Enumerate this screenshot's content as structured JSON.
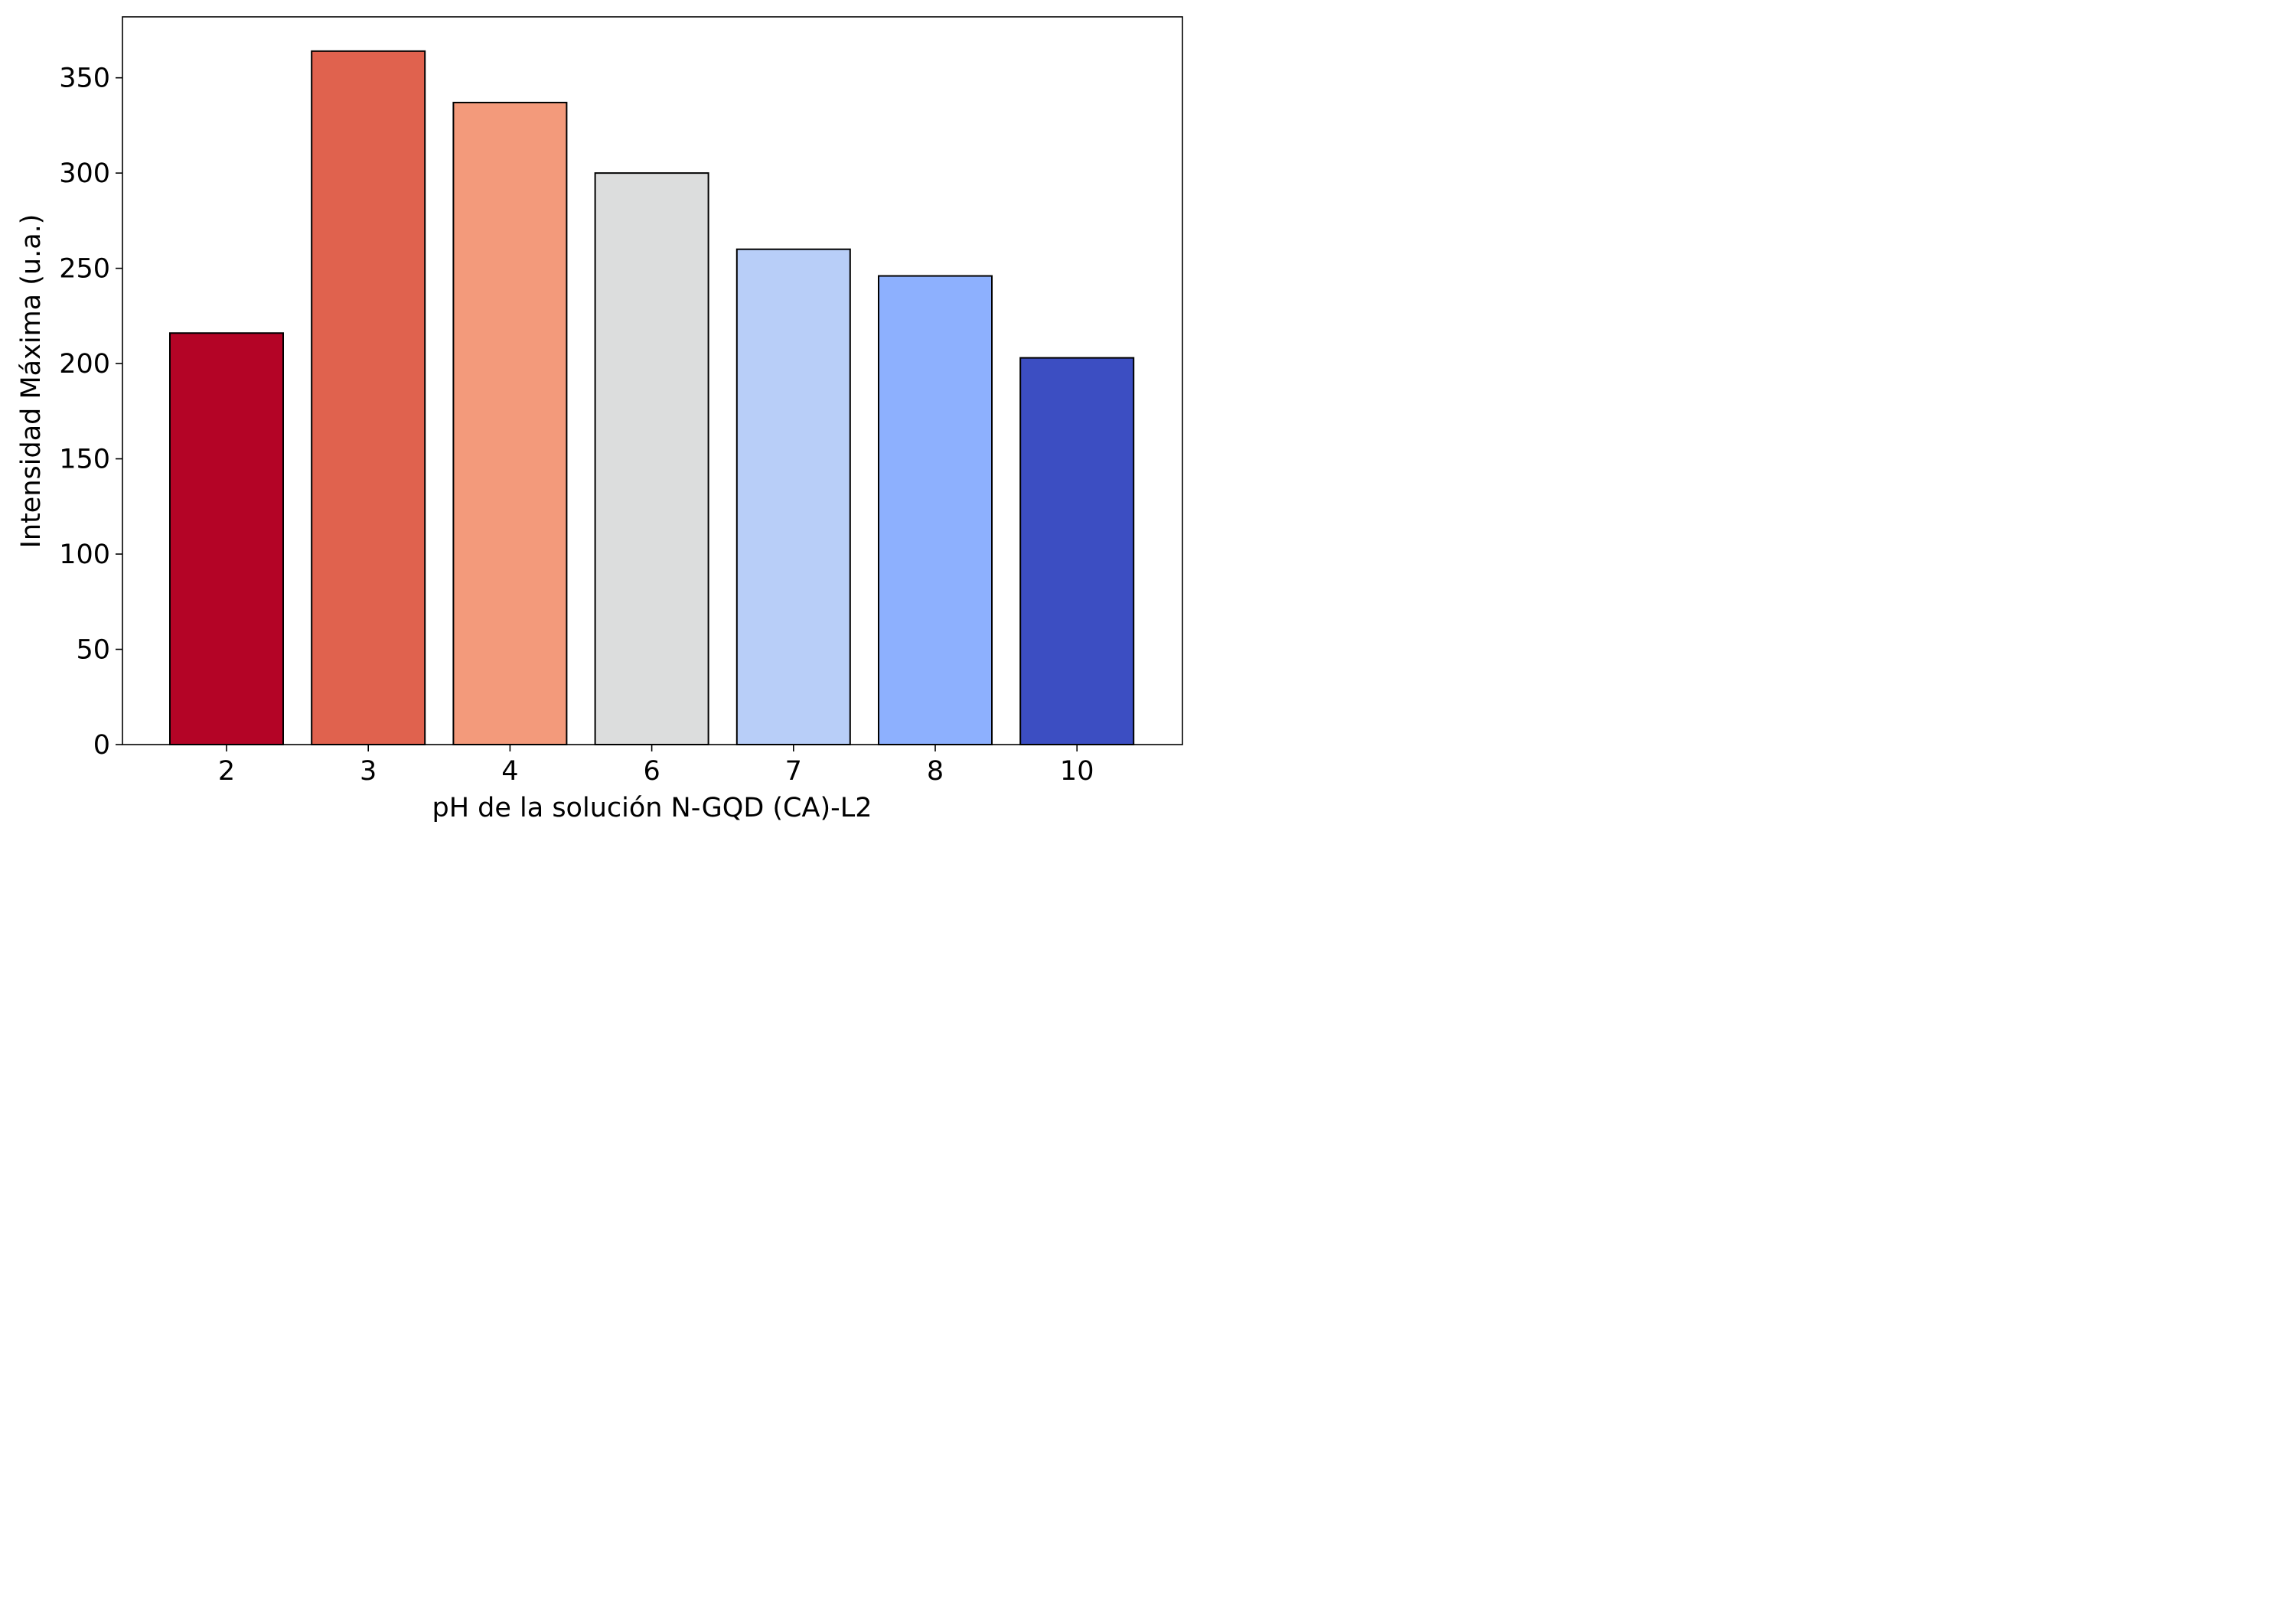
{
  "chart_data": {
    "type": "bar",
    "title": "",
    "xlabel": "pH de la solución N-GQD (CA)-L2",
    "ylabel": "Intensidad Máxima (u.a.)",
    "categories": [
      "2",
      "3",
      "4",
      "6",
      "7",
      "8",
      "10"
    ],
    "values": [
      216,
      364,
      337,
      300,
      260,
      246,
      203
    ],
    "colors": [
      "#b40426",
      "#e0624e",
      "#f39a7b",
      "#dcdddd",
      "#b8cef8",
      "#8db0fe",
      "#3c4ec2"
    ],
    "bar_edge_color": "#000000",
    "ylim": [
      0,
      382
    ],
    "yticks": [
      0,
      50,
      100,
      150,
      200,
      250,
      300,
      350
    ],
    "grid": false,
    "legend": "none"
  }
}
